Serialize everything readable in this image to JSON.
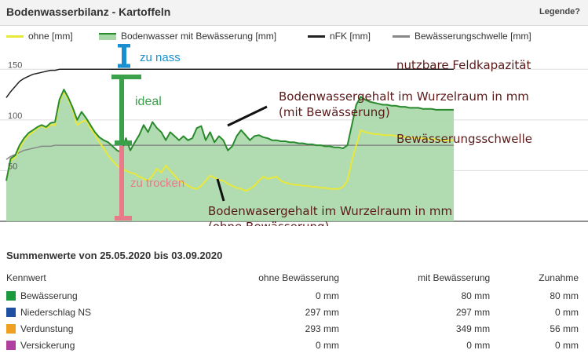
{
  "header": {
    "title": "Bodenwasserbilanz - Kartoffeln",
    "legend_link": "Legende?"
  },
  "legend": [
    {
      "label": "ohne [mm]",
      "color": "#e8e83a",
      "kind": "line"
    },
    {
      "label": "Bodenwasser mit Bewässerung [mm]",
      "color": "#2a8a2e",
      "fill": "#a8d8a8",
      "kind": "area"
    },
    {
      "label": "nFK [mm]",
      "color": "#222222",
      "kind": "line"
    },
    {
      "label": "Bewässerungschwelle [mm]",
      "color": "#888888",
      "kind": "line"
    }
  ],
  "chart_data": {
    "type": "area",
    "title": "Bodenwasserbilanz - Kartoffeln",
    "xlabel": "",
    "ylabel": "",
    "ylim": [
      0,
      175
    ],
    "yticks": [
      50,
      100,
      150
    ],
    "grid": true,
    "x": [
      0,
      1,
      2,
      3,
      4,
      5,
      6,
      7,
      8,
      9,
      10,
      11,
      12,
      13,
      14,
      15,
      16,
      17,
      18,
      19,
      20,
      21,
      22,
      23,
      24,
      25,
      26,
      27,
      28,
      29,
      30,
      31,
      32,
      33,
      34,
      35,
      36,
      37,
      38,
      39,
      40,
      41,
      42,
      43,
      44,
      45,
      46,
      47,
      48,
      49,
      50,
      51,
      52,
      53,
      54,
      55,
      56,
      57,
      58,
      59,
      60,
      61,
      62,
      63,
      64,
      65,
      66,
      67,
      68,
      69,
      70,
      71,
      72,
      73,
      74,
      75,
      76,
      77,
      78,
      79,
      80,
      81,
      82,
      83,
      84,
      85,
      86,
      87,
      88,
      89,
      90,
      91,
      92,
      93,
      94,
      95,
      96,
      97,
      98,
      99,
      100,
      101
    ],
    "series": [
      {
        "name": "ohne [mm]",
        "color": "#e8e83a",
        "values": [
          40,
          60,
          63,
          72,
          80,
          85,
          88,
          92,
          94,
          92,
          95,
          95,
          118,
          128,
          120,
          110,
          95,
          98,
          100,
          92,
          86,
          78,
          72,
          65,
          60,
          55,
          52,
          50,
          48,
          47,
          44,
          42,
          40,
          45,
          52,
          48,
          55,
          50,
          45,
          40,
          38,
          35,
          33,
          32,
          35,
          40,
          45,
          43,
          41,
          40,
          37,
          35,
          33,
          32,
          30,
          32,
          35,
          40,
          44,
          42,
          43,
          44,
          40,
          38,
          37,
          36,
          36,
          35,
          35,
          34,
          34,
          33,
          33,
          32,
          32,
          32,
          34,
          40,
          60,
          75,
          90,
          88,
          87,
          86,
          86,
          85,
          85,
          85,
          84,
          84,
          83,
          83,
          82,
          82,
          82,
          81,
          81,
          81,
          80,
          80,
          80,
          80
        ]
      },
      {
        "name": "Bodenwasser mit Bewässerung [mm]",
        "color": "#2a8a2e",
        "values": [
          40,
          62,
          65,
          75,
          82,
          87,
          90,
          93,
          95,
          93,
          97,
          98,
          120,
          130,
          122,
          112,
          100,
          108,
          102,
          95,
          88,
          83,
          80,
          78,
          74,
          70,
          68,
          82,
          70,
          78,
          85,
          95,
          88,
          98,
          92,
          88,
          80,
          88,
          84,
          80,
          84,
          80,
          82,
          92,
          94,
          80,
          88,
          78,
          84,
          80,
          70,
          74,
          84,
          90,
          85,
          80,
          84,
          85,
          83,
          82,
          80,
          80,
          79,
          79,
          78,
          78,
          77,
          77,
          76,
          76,
          75,
          75,
          74,
          74,
          73,
          73,
          72,
          75,
          95,
          115,
          123,
          120,
          118,
          117,
          116,
          115,
          115,
          114,
          114,
          113,
          113,
          112,
          112,
          112,
          111,
          111,
          111,
          110,
          110,
          110,
          110,
          110
        ]
      },
      {
        "name": "nFK [mm]",
        "color": "#222222",
        "values": [
          122,
          128,
          133,
          138,
          141,
          143,
          145,
          146,
          147,
          148,
          149,
          149,
          150,
          150,
          150,
          150,
          150,
          150,
          150,
          150,
          150,
          150,
          150,
          150,
          150,
          150,
          150,
          150,
          150,
          150,
          150,
          150,
          150,
          150,
          150,
          150,
          150,
          150,
          150,
          150,
          150,
          150,
          150,
          150,
          150,
          150,
          150,
          150,
          150,
          150,
          150,
          150,
          150,
          150,
          150,
          150,
          150,
          150,
          150,
          150,
          150,
          150,
          150,
          150,
          150,
          150,
          150,
          150,
          150,
          150,
          150,
          150,
          150,
          150,
          150,
          150,
          150,
          150,
          150,
          150,
          150,
          150,
          150,
          150,
          150,
          150,
          150,
          150,
          150,
          150,
          150,
          150,
          150,
          150,
          150,
          150,
          150,
          150,
          150,
          150,
          150,
          150
        ]
      },
      {
        "name": "Bewässerungschwelle [mm]",
        "color": "#888888",
        "values": [
          61,
          64,
          66,
          68,
          70,
          71,
          72,
          73,
          74,
          74,
          74,
          75,
          75,
          75,
          75,
          75,
          75,
          75,
          75,
          75,
          75,
          75,
          75,
          75,
          75,
          75,
          75,
          75,
          75,
          75,
          75,
          75,
          75,
          75,
          75,
          75,
          75,
          75,
          75,
          75,
          75,
          75,
          75,
          75,
          75,
          75,
          75,
          75,
          75,
          75,
          75,
          75,
          75,
          75,
          75,
          75,
          75,
          75,
          75,
          75,
          75,
          75,
          75,
          75,
          75,
          75,
          75,
          75,
          75,
          75,
          75,
          75,
          75,
          75,
          75,
          75,
          75,
          75,
          75,
          75,
          75,
          75,
          75,
          75,
          75,
          75,
          75,
          75,
          75,
          75,
          75,
          75,
          75,
          75,
          75,
          75,
          75,
          75,
          75,
          75,
          75,
          75
        ]
      }
    ],
    "annotations": {
      "zu_nass": {
        "text": "zu nass",
        "color": "#1a8fd0"
      },
      "ideal": {
        "text": "ideal",
        "color": "#3aa04a"
      },
      "zu_trocken": {
        "text": "zu trocken",
        "color": "#e87a8a"
      },
      "nutzbare": {
        "text": "nutzbare Feldkapazität",
        "color": "#5a1a1a"
      },
      "mit_bewaesserung_1": {
        "text": "Bodenwassergehalt im Wurzelraum in mm",
        "color": "#5a1a1a"
      },
      "mit_bewaesserung_2": {
        "text": "(mit Bewässerung)",
        "color": "#5a1a1a"
      },
      "schwelle": {
        "text": "Bewässerungsschwelle",
        "color": "#5a1a1a"
      },
      "ohne_1": {
        "text": "Bodenwasergehalt im Wurzelraum in mm",
        "color": "#5a1a1a"
      },
      "ohne_2": {
        "text": "(ohne Bewässerung)",
        "color": "#5a1a1a"
      }
    }
  },
  "summary": {
    "title": "Summenwerte von 25.05.2020 bis 03.09.2020",
    "headers": [
      "Kennwert",
      "ohne Bewässerung",
      "mit Bewässerung",
      "Zunahme"
    ],
    "rows": [
      {
        "label": "Bewässerung",
        "color": "#1a9a3a",
        "ohne": "0 mm",
        "mit": "80 mm",
        "zunahme": "80 mm"
      },
      {
        "label": "Niederschlag NS",
        "color": "#1f4fa0",
        "ohne": "297 mm",
        "mit": "297 mm",
        "zunahme": "0 mm"
      },
      {
        "label": "Verdunstung",
        "color": "#f0a020",
        "ohne": "293 mm",
        "mit": "349 mm",
        "zunahme": "56 mm"
      },
      {
        "label": "Versickerung",
        "color": "#b040a0",
        "ohne": "0 mm",
        "mit": "0 mm",
        "zunahme": "0 mm"
      }
    ]
  }
}
